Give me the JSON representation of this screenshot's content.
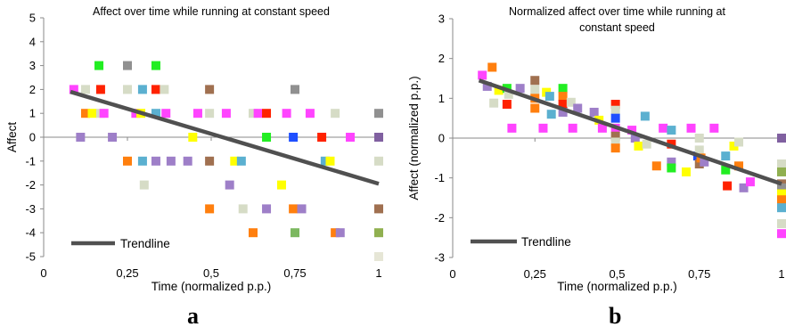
{
  "panel_labels": [
    "a",
    "b"
  ],
  "chart_data": [
    {
      "type": "scatter",
      "title": "Affect over time while running at constant speed",
      "xlabel": "Time (normalized p.p.)",
      "ylabel": "Affect",
      "xlim": [
        0,
        1
      ],
      "ylim": [
        -5,
        5
      ],
      "x_ticks": [
        "0",
        "0,25",
        "0,5",
        "0,75",
        "1"
      ],
      "x_tick_values": [
        0,
        0.25,
        0.5,
        0.75,
        1
      ],
      "y_ticks": [
        "5",
        "4",
        "3",
        "2",
        "1",
        "0",
        "-1",
        "-2",
        "-3",
        "-4",
        "-5"
      ],
      "y_tick_values": [
        5,
        4,
        3,
        2,
        1,
        0,
        -1,
        -2,
        -3,
        -4,
        -5
      ],
      "grid": false,
      "legend": {
        "position": "bottom-left",
        "label": "Trendline"
      },
      "trendline": {
        "x": [
          0.08,
          1.0
        ],
        "y": [
          1.9,
          -1.95
        ],
        "color": "#505050"
      },
      "points": [
        {
          "x": 0.09,
          "y": 2,
          "color": "#ff44ff"
        },
        {
          "x": 0.11,
          "y": 0,
          "color": "#9e7fc8"
        },
        {
          "x": 0.125,
          "y": 2,
          "color": "#d6dcc6"
        },
        {
          "x": 0.125,
          "y": 1,
          "color": "#ff7f0e"
        },
        {
          "x": 0.145,
          "y": 1,
          "color": "#ffff00"
        },
        {
          "x": 0.165,
          "y": 3,
          "color": "#22ee22"
        },
        {
          "x": 0.17,
          "y": 2,
          "color": "#ff2200"
        },
        {
          "x": 0.17,
          "y": 1,
          "color": "#d6dcc6"
        },
        {
          "x": 0.18,
          "y": 1,
          "color": "#ff44ff"
        },
        {
          "x": 0.205,
          "y": 0,
          "color": "#9e7fc8"
        },
        {
          "x": 0.25,
          "y": 3,
          "color": "#909090"
        },
        {
          "x": 0.25,
          "y": 2,
          "color": "#d6dcc6"
        },
        {
          "x": 0.25,
          "y": -1,
          "color": "#ff7f0e"
        },
        {
          "x": 0.275,
          "y": 1,
          "color": "#ff44ff"
        },
        {
          "x": 0.29,
          "y": 1,
          "color": "#ffff00"
        },
        {
          "x": 0.295,
          "y": 2,
          "color": "#5bb0d0"
        },
        {
          "x": 0.295,
          "y": -1,
          "color": "#5bb0d0"
        },
        {
          "x": 0.3,
          "y": -2,
          "color": "#d6dcc6"
        },
        {
          "x": 0.335,
          "y": 3,
          "color": "#22ee22"
        },
        {
          "x": 0.335,
          "y": 2,
          "color": "#ff2200"
        },
        {
          "x": 0.335,
          "y": 1,
          "color": "#5bb0d0"
        },
        {
          "x": 0.335,
          "y": -1,
          "color": "#9e7fc8"
        },
        {
          "x": 0.36,
          "y": 2,
          "color": "#d6dcc6"
        },
        {
          "x": 0.365,
          "y": 1,
          "color": "#ff44ff"
        },
        {
          "x": 0.38,
          "y": -1,
          "color": "#9e7fc8"
        },
        {
          "x": 0.43,
          "y": -1,
          "color": "#9e7fc8"
        },
        {
          "x": 0.445,
          "y": 0,
          "color": "#ffff00"
        },
        {
          "x": 0.46,
          "y": 1,
          "color": "#ff44ff"
        },
        {
          "x": 0.495,
          "y": 2,
          "color": "#a07050"
        },
        {
          "x": 0.495,
          "y": 1,
          "color": "#d6dcc6"
        },
        {
          "x": 0.495,
          "y": -1,
          "color": "#a07050"
        },
        {
          "x": 0.495,
          "y": -3,
          "color": "#ff7f0e"
        },
        {
          "x": 0.545,
          "y": 1,
          "color": "#ff44ff"
        },
        {
          "x": 0.555,
          "y": -2,
          "color": "#9e7fc8"
        },
        {
          "x": 0.57,
          "y": -1,
          "color": "#ffff00"
        },
        {
          "x": 0.59,
          "y": -1,
          "color": "#5bb0d0"
        },
        {
          "x": 0.595,
          "y": -3,
          "color": "#d6dcc6"
        },
        {
          "x": 0.625,
          "y": 1,
          "color": "#d6dcc6"
        },
        {
          "x": 0.625,
          "y": -4,
          "color": "#ff7f0e"
        },
        {
          "x": 0.64,
          "y": 1,
          "color": "#ff44ff"
        },
        {
          "x": 0.665,
          "y": 1,
          "color": "#ff2200"
        },
        {
          "x": 0.665,
          "y": 0,
          "color": "#22ee22"
        },
        {
          "x": 0.665,
          "y": -3,
          "color": "#9e7fc8"
        },
        {
          "x": 0.71,
          "y": -2,
          "color": "#ffff00"
        },
        {
          "x": 0.725,
          "y": 1,
          "color": "#ff44ff"
        },
        {
          "x": 0.745,
          "y": 0,
          "color": "#1f4fff"
        },
        {
          "x": 0.745,
          "y": -3,
          "color": "#ff7f0e"
        },
        {
          "x": 0.75,
          "y": 2,
          "color": "#909090"
        },
        {
          "x": 0.75,
          "y": -4,
          "color": "#7cb860"
        },
        {
          "x": 0.77,
          "y": -3,
          "color": "#9e7fc8"
        },
        {
          "x": 0.795,
          "y": 1,
          "color": "#ff44ff"
        },
        {
          "x": 0.83,
          "y": 0,
          "color": "#ff2200"
        },
        {
          "x": 0.84,
          "y": -1,
          "color": "#5bb0d0"
        },
        {
          "x": 0.855,
          "y": -1,
          "color": "#ffff00"
        },
        {
          "x": 0.87,
          "y": 1,
          "color": "#d6dcc6"
        },
        {
          "x": 0.87,
          "y": -4,
          "color": "#ff7f0e"
        },
        {
          "x": 0.885,
          "y": -4,
          "color": "#9e7fc8"
        },
        {
          "x": 0.915,
          "y": 0,
          "color": "#ff44ff"
        },
        {
          "x": 1.0,
          "y": 1,
          "color": "#909090"
        },
        {
          "x": 1.0,
          "y": 0,
          "color": "#8060a0"
        },
        {
          "x": 1.0,
          "y": -1,
          "color": "#d6dcc6"
        },
        {
          "x": 1.0,
          "y": -3,
          "color": "#a07050"
        },
        {
          "x": 1.0,
          "y": -4,
          "color": "#90b050"
        },
        {
          "x": 1.0,
          "y": -5,
          "color": "#e6e6d6"
        }
      ]
    },
    {
      "type": "scatter",
      "title": "Normalized affect over time while running at constant speed",
      "title_lines": [
        "Normalized affect over time while running at",
        "constant speed"
      ],
      "xlabel": "Time (normalized p.p.)",
      "ylabel": "Affect (normalized p.p.)",
      "xlim": [
        0,
        1
      ],
      "ylim": [
        -3,
        3
      ],
      "x_ticks": [
        "0",
        "0,25",
        "0,5",
        "0,75",
        "1"
      ],
      "x_tick_values": [
        0,
        0.25,
        0.5,
        0.75,
        1
      ],
      "y_ticks": [
        "3",
        "2",
        "1",
        "0",
        "-1",
        "-2",
        "-3"
      ],
      "y_tick_values": [
        3,
        2,
        1,
        0,
        -1,
        -2,
        -3
      ],
      "grid": false,
      "legend": {
        "position": "bottom-left",
        "label": "Trendline"
      },
      "trendline": {
        "x": [
          0.08,
          1.0
        ],
        "y": [
          1.45,
          -1.15
        ],
        "color": "#505050"
      },
      "points": [
        {
          "x": 0.09,
          "y": 1.58,
          "color": "#ff44ff"
        },
        {
          "x": 0.105,
          "y": 1.3,
          "color": "#9e7fc8"
        },
        {
          "x": 0.12,
          "y": 1.78,
          "color": "#ff7f0e"
        },
        {
          "x": 0.125,
          "y": 0.88,
          "color": "#d6dcc6"
        },
        {
          "x": 0.14,
          "y": 1.2,
          "color": "#ffff00"
        },
        {
          "x": 0.165,
          "y": 1.25,
          "color": "#22ee22"
        },
        {
          "x": 0.165,
          "y": 0.85,
          "color": "#ff2200"
        },
        {
          "x": 0.17,
          "y": 1.1,
          "color": "#d6dcc6"
        },
        {
          "x": 0.18,
          "y": 0.25,
          "color": "#ff44ff"
        },
        {
          "x": 0.205,
          "y": 1.25,
          "color": "#9e7fc8"
        },
        {
          "x": 0.25,
          "y": 1.45,
          "color": "#a07050"
        },
        {
          "x": 0.25,
          "y": 1.22,
          "color": "#d6dcc6"
        },
        {
          "x": 0.25,
          "y": 1.0,
          "color": "#ff7f0e"
        },
        {
          "x": 0.25,
          "y": 0.75,
          "color": "#ff7f0e"
        },
        {
          "x": 0.275,
          "y": 0.25,
          "color": "#ff44ff"
        },
        {
          "x": 0.285,
          "y": 1.15,
          "color": "#ffff00"
        },
        {
          "x": 0.295,
          "y": 1.05,
          "color": "#5bb0d0"
        },
        {
          "x": 0.3,
          "y": 0.6,
          "color": "#5bb0d0"
        },
        {
          "x": 0.335,
          "y": 1.25,
          "color": "#22ee22"
        },
        {
          "x": 0.335,
          "y": 1.05,
          "color": "#ff7f0e"
        },
        {
          "x": 0.335,
          "y": 0.85,
          "color": "#ff2200"
        },
        {
          "x": 0.335,
          "y": 0.65,
          "color": "#9e7fc8"
        },
        {
          "x": 0.36,
          "y": 0.9,
          "color": "#d6dcc6"
        },
        {
          "x": 0.365,
          "y": 0.25,
          "color": "#ff44ff"
        },
        {
          "x": 0.38,
          "y": 0.75,
          "color": "#9e7fc8"
        },
        {
          "x": 0.43,
          "y": 0.65,
          "color": "#9e7fc8"
        },
        {
          "x": 0.445,
          "y": 0.45,
          "color": "#ffff00"
        },
        {
          "x": 0.455,
          "y": 0.25,
          "color": "#ff44ff"
        },
        {
          "x": 0.495,
          "y": 0.85,
          "color": "#ff2200"
        },
        {
          "x": 0.495,
          "y": 0.7,
          "color": "#d6dcc6"
        },
        {
          "x": 0.495,
          "y": 0.5,
          "color": "#1f4fff"
        },
        {
          "x": 0.495,
          "y": 0.25,
          "color": "#ff44ff"
        },
        {
          "x": 0.495,
          "y": 0.05,
          "color": "#a07050"
        },
        {
          "x": 0.495,
          "y": -0.1,
          "color": "#d6dcc6"
        },
        {
          "x": 0.495,
          "y": -0.25,
          "color": "#ff7f0e"
        },
        {
          "x": 0.545,
          "y": 0.2,
          "color": "#ff44ff"
        },
        {
          "x": 0.555,
          "y": 0.0,
          "color": "#9e7fc8"
        },
        {
          "x": 0.565,
          "y": -0.2,
          "color": "#ffff00"
        },
        {
          "x": 0.585,
          "y": 0.55,
          "color": "#5bb0d0"
        },
        {
          "x": 0.59,
          "y": -0.15,
          "color": "#d6dcc6"
        },
        {
          "x": 0.62,
          "y": -0.7,
          "color": "#ff7f0e"
        },
        {
          "x": 0.64,
          "y": 0.25,
          "color": "#ff44ff"
        },
        {
          "x": 0.665,
          "y": 0.2,
          "color": "#5bb0d0"
        },
        {
          "x": 0.665,
          "y": -0.15,
          "color": "#ff2200"
        },
        {
          "x": 0.665,
          "y": -0.6,
          "color": "#9e7fc8"
        },
        {
          "x": 0.665,
          "y": -0.75,
          "color": "#22ee22"
        },
        {
          "x": 0.71,
          "y": -0.85,
          "color": "#ffff00"
        },
        {
          "x": 0.725,
          "y": 0.25,
          "color": "#ff44ff"
        },
        {
          "x": 0.745,
          "y": -0.45,
          "color": "#1f4fff"
        },
        {
          "x": 0.75,
          "y": 0.0,
          "color": "#d6dcc6"
        },
        {
          "x": 0.75,
          "y": -0.3,
          "color": "#d6dcc6"
        },
        {
          "x": 0.75,
          "y": -0.65,
          "color": "#a07050"
        },
        {
          "x": 0.755,
          "y": -0.5,
          "color": "#ff7f0e"
        },
        {
          "x": 0.765,
          "y": -0.6,
          "color": "#9e7fc8"
        },
        {
          "x": 0.795,
          "y": 0.25,
          "color": "#ff44ff"
        },
        {
          "x": 0.83,
          "y": -0.45,
          "color": "#5bb0d0"
        },
        {
          "x": 0.83,
          "y": -0.8,
          "color": "#22ee22"
        },
        {
          "x": 0.835,
          "y": -1.2,
          "color": "#ff2200"
        },
        {
          "x": 0.855,
          "y": -0.2,
          "color": "#ffff00"
        },
        {
          "x": 0.87,
          "y": -0.1,
          "color": "#d6dcc6"
        },
        {
          "x": 0.87,
          "y": -0.7,
          "color": "#ff7f0e"
        },
        {
          "x": 0.885,
          "y": -1.25,
          "color": "#9e7fc8"
        },
        {
          "x": 0.905,
          "y": -1.1,
          "color": "#ff44ff"
        },
        {
          "x": 1.0,
          "y": 0.0,
          "color": "#8060a0"
        },
        {
          "x": 1.0,
          "y": -0.65,
          "color": "#d6dcc6"
        },
        {
          "x": 1.0,
          "y": -0.85,
          "color": "#90b050"
        },
        {
          "x": 1.0,
          "y": -1.15,
          "color": "#a07050"
        },
        {
          "x": 1.0,
          "y": -1.25,
          "color": "#909090"
        },
        {
          "x": 1.0,
          "y": -1.4,
          "color": "#ffff00"
        },
        {
          "x": 1.0,
          "y": -1.55,
          "color": "#ff7f0e"
        },
        {
          "x": 1.0,
          "y": -1.75,
          "color": "#5bb0d0"
        },
        {
          "x": 1.0,
          "y": -2.15,
          "color": "#d6dcc6"
        },
        {
          "x": 1.0,
          "y": -2.4,
          "color": "#ff44ff"
        }
      ]
    }
  ]
}
